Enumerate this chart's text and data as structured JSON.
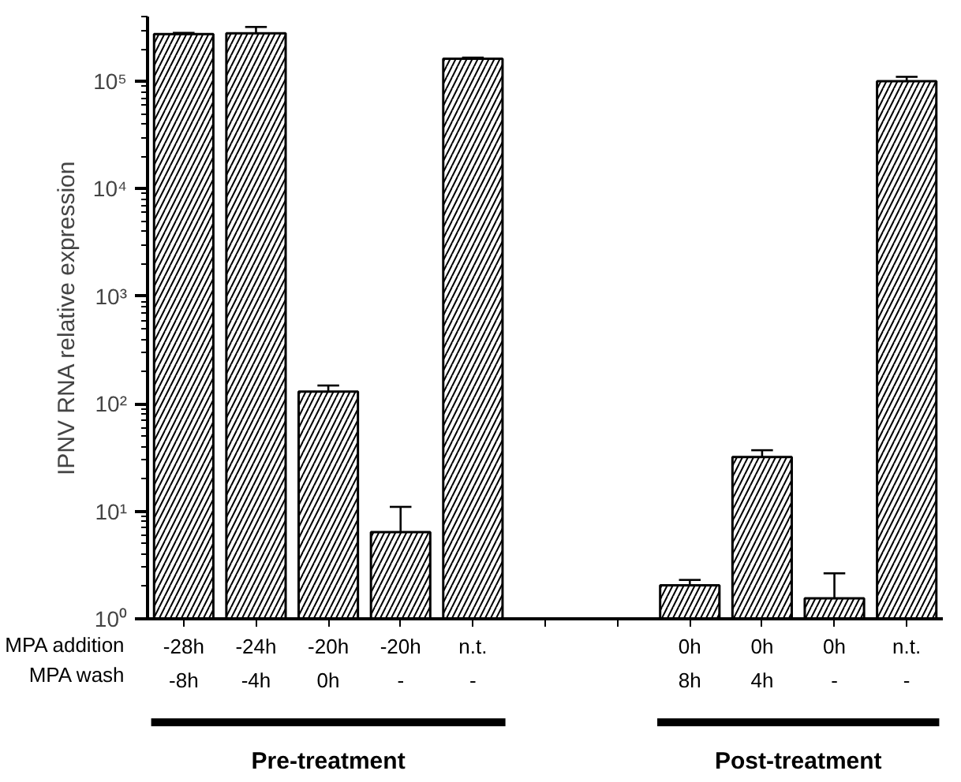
{
  "chart_data": {
    "type": "bar",
    "ylabel": "IPNV RNA relative expression",
    "categories": [
      "-28h\n-8h",
      "-24h\n-4h",
      "-20h\n0h",
      "-20h\n-",
      "n.t.\n-",
      null,
      null,
      "0h\n8h",
      "0h\n4h",
      "0h\n-",
      "n.t.\n-"
    ],
    "values": [
      275000,
      280000,
      130,
      6.4,
      162000,
      null,
      null,
      2.05,
      32,
      1.55,
      100000
    ],
    "errors": [
      [
        275000,
        282000
      ],
      [
        280000,
        320000
      ],
      [
        130,
        148
      ],
      [
        6.4,
        11
      ],
      [
        162000,
        166000
      ],
      null,
      null,
      [
        2.05,
        2.3
      ],
      [
        32,
        37
      ],
      [
        1.55,
        2.65
      ],
      [
        100000,
        110000
      ]
    ],
    "color": "#000000",
    "log": true,
    "ylim": [
      1,
      400000
    ],
    "yticks": [
      {
        "value": 1,
        "label": "10⁰"
      },
      {
        "value": 10,
        "label": "10¹"
      },
      {
        "value": 100,
        "label": "10²"
      },
      {
        "value": 1000,
        "label": "10³"
      },
      {
        "value": 10000,
        "label": "10⁴"
      },
      {
        "value": 100000,
        "label": "10⁵"
      }
    ],
    "grid": false,
    "annotations": [
      "MPA addition\nMPA wash",
      "Pre-treatment",
      "Post-treatment"
    ]
  }
}
